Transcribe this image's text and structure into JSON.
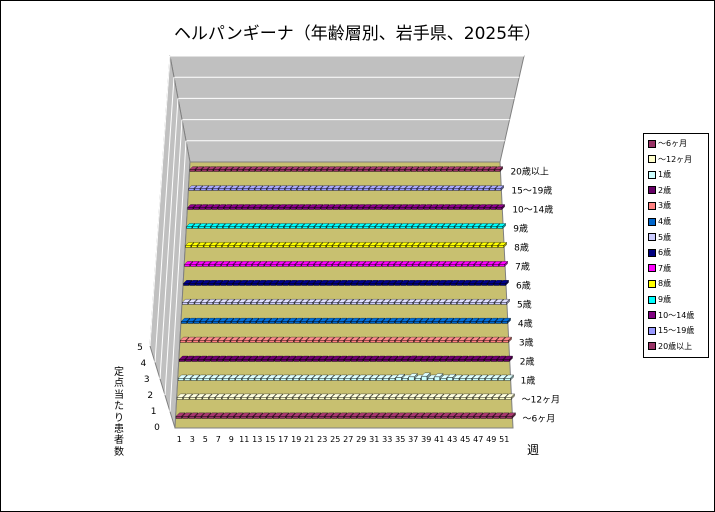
{
  "chart_data": {
    "type": "bar3d",
    "title": "ヘルパンギーナ（年齢層別、岩手県、2025年）",
    "xlabel": "週",
    "zlabel": "定点当たり患者数",
    "zlim": [
      0,
      5
    ],
    "z_ticks": [
      "0",
      "1",
      "2",
      "3",
      "4",
      "5"
    ],
    "x_ticks": [
      "1",
      "3",
      "5",
      "7",
      "9",
      "11",
      "13",
      "15",
      "17",
      "19",
      "21",
      "23",
      "25",
      "27",
      "29",
      "31",
      "33",
      "35",
      "37",
      "39",
      "41",
      "43",
      "45",
      "47",
      "49",
      "51"
    ],
    "weeks": 52,
    "legend_position": "right",
    "series": [
      {
        "name": "～6ヶ月",
        "color": "#993366",
        "values": [
          0,
          0,
          0,
          0,
          0,
          0,
          0,
          0,
          0,
          0,
          0,
          0,
          0,
          0,
          0,
          0,
          0,
          0,
          0,
          0,
          0,
          0,
          0,
          0,
          0,
          0,
          0,
          0,
          0,
          0,
          0,
          0,
          0,
          0,
          0,
          0,
          0,
          0,
          0,
          0,
          0,
          0,
          0,
          0,
          0,
          0,
          0,
          0,
          0,
          0,
          0,
          0
        ]
      },
      {
        "name": "～12ヶ月",
        "color": "#ffffcc",
        "values": [
          0,
          0,
          0,
          0,
          0,
          0,
          0,
          0,
          0,
          0,
          0,
          0,
          0,
          0,
          0,
          0,
          0,
          0,
          0,
          0,
          0,
          0,
          0,
          0,
          0,
          0,
          0,
          0,
          0,
          0,
          0,
          0,
          0,
          0,
          0,
          0,
          0,
          0,
          0,
          0,
          0,
          0,
          0,
          0,
          0,
          0,
          0,
          0,
          0,
          0,
          0,
          0
        ]
      },
      {
        "name": "1歳",
        "color": "#ccffff",
        "values": [
          0,
          0,
          0,
          0,
          0.04,
          0,
          0,
          0,
          0,
          0,
          0,
          0,
          0,
          0,
          0,
          0,
          0,
          0,
          0,
          0,
          0,
          0,
          0,
          0,
          0,
          0.04,
          0,
          0,
          0.04,
          0,
          0,
          0.04,
          0,
          0.08,
          0.17,
          0.08,
          0.21,
          0.08,
          0.25,
          0.08,
          0.21,
          0.13,
          0.17,
          0.04,
          0.08,
          0.08,
          0.04,
          0.04,
          0.04,
          0,
          0,
          0
        ]
      },
      {
        "name": "2歳",
        "color": "#660066",
        "values": [
          0,
          0,
          0,
          0,
          0,
          0,
          0,
          0,
          0,
          0,
          0,
          0,
          0,
          0,
          0,
          0,
          0,
          0,
          0,
          0,
          0,
          0,
          0,
          0,
          0,
          0,
          0,
          0,
          0,
          0,
          0,
          0,
          0,
          0,
          0,
          0.04,
          0.13,
          0.08,
          0.08,
          0.04,
          0.08,
          0.08,
          0.08,
          0.04,
          0.04,
          0.08,
          0.04,
          0,
          0,
          0,
          0,
          0
        ]
      },
      {
        "name": "3歳",
        "color": "#ff8080",
        "values": [
          0,
          0,
          0,
          0,
          0,
          0,
          0,
          0,
          0,
          0,
          0,
          0,
          0,
          0,
          0,
          0,
          0,
          0,
          0,
          0,
          0,
          0,
          0,
          0,
          0,
          0,
          0,
          0,
          0,
          0,
          0,
          0,
          0,
          0,
          0.04,
          0.04,
          0.04,
          0.04,
          0.04,
          0.04,
          0.04,
          0,
          0.04,
          0,
          0,
          0.04,
          0,
          0,
          0,
          0,
          0,
          0
        ]
      },
      {
        "name": "4歳",
        "color": "#0066cc",
        "values": [
          0,
          0,
          0,
          0,
          0,
          0,
          0,
          0,
          0,
          0,
          0,
          0,
          0,
          0,
          0,
          0,
          0,
          0,
          0,
          0,
          0,
          0,
          0,
          0,
          0,
          0,
          0,
          0,
          0,
          0,
          0,
          0,
          0,
          0,
          0,
          0.04,
          0.04,
          0.04,
          0.08,
          0.04,
          0.04,
          0.04,
          0,
          0.04,
          0,
          0,
          0,
          0,
          0,
          0,
          0,
          0
        ]
      },
      {
        "name": "5歳",
        "color": "#ccccff",
        "values": [
          0,
          0,
          0,
          0,
          0,
          0,
          0,
          0,
          0,
          0,
          0,
          0,
          0,
          0,
          0,
          0,
          0,
          0,
          0,
          0,
          0,
          0,
          0,
          0,
          0,
          0,
          0,
          0,
          0,
          0,
          0,
          0,
          0,
          0,
          0.04,
          0.04,
          0.04,
          0.04,
          0.04,
          0,
          0.04,
          0.04,
          0.04,
          0,
          0.04,
          0,
          0,
          0,
          0,
          0,
          0,
          0
        ]
      },
      {
        "name": "6歳",
        "color": "#000080",
        "values": [
          0,
          0,
          0,
          0,
          0,
          0,
          0,
          0,
          0,
          0,
          0,
          0,
          0,
          0,
          0,
          0,
          0,
          0,
          0,
          0,
          0,
          0,
          0,
          0,
          0,
          0,
          0,
          0,
          0,
          0,
          0.04,
          0,
          0,
          0,
          0,
          0.04,
          0.04,
          0.08,
          0.04,
          0,
          0.04,
          0,
          0.08,
          0.04,
          0,
          0,
          0,
          0,
          0,
          0,
          0,
          0
        ]
      },
      {
        "name": "7歳",
        "color": "#ff00ff",
        "values": [
          0,
          0,
          0,
          0,
          0,
          0,
          0,
          0,
          0,
          0,
          0,
          0,
          0,
          0,
          0,
          0,
          0,
          0,
          0,
          0,
          0,
          0,
          0,
          0,
          0,
          0,
          0,
          0,
          0,
          0,
          0,
          0,
          0,
          0,
          0,
          0,
          0,
          0,
          0,
          0,
          0,
          0,
          0,
          0,
          0,
          0,
          0,
          0,
          0,
          0,
          0,
          0
        ]
      },
      {
        "name": "8歳",
        "color": "#ffff00",
        "values": [
          0,
          0,
          0,
          0,
          0,
          0,
          0,
          0,
          0,
          0,
          0,
          0,
          0,
          0,
          0,
          0,
          0,
          0,
          0,
          0,
          0,
          0,
          0,
          0,
          0,
          0,
          0,
          0,
          0,
          0,
          0,
          0,
          0,
          0,
          0,
          0,
          0,
          0,
          0.04,
          0,
          0,
          0,
          0.04,
          0,
          0,
          0,
          0,
          0,
          0,
          0,
          0,
          0
        ]
      },
      {
        "name": "9歳",
        "color": "#00ffff",
        "values": [
          0,
          0,
          0,
          0,
          0,
          0,
          0,
          0,
          0,
          0,
          0,
          0,
          0,
          0,
          0,
          0,
          0,
          0,
          0,
          0,
          0,
          0,
          0,
          0,
          0,
          0,
          0,
          0,
          0,
          0,
          0,
          0,
          0,
          0,
          0,
          0,
          0,
          0,
          0,
          0,
          0,
          0,
          0,
          0,
          0,
          0,
          0,
          0,
          0,
          0,
          0,
          0
        ]
      },
      {
        "name": "10～14歳",
        "color": "#800080",
        "values": [
          0,
          0,
          0,
          0,
          0,
          0,
          0,
          0,
          0,
          0,
          0,
          0,
          0,
          0,
          0,
          0,
          0,
          0,
          0,
          0,
          0,
          0,
          0,
          0,
          0,
          0,
          0,
          0,
          0,
          0,
          0,
          0,
          0,
          0,
          0,
          0.04,
          0,
          0,
          0,
          0,
          0,
          0,
          0,
          0,
          0,
          0,
          0,
          0,
          0,
          0,
          0,
          0
        ]
      },
      {
        "name": "15～19歳",
        "color": "#9999ff",
        "values": [
          0,
          0,
          0,
          0,
          0,
          0,
          0,
          0,
          0,
          0,
          0,
          0,
          0,
          0,
          0,
          0,
          0,
          0,
          0,
          0,
          0,
          0,
          0,
          0,
          0,
          0,
          0,
          0,
          0,
          0,
          0,
          0,
          0,
          0,
          0,
          0,
          0,
          0,
          0,
          0,
          0,
          0,
          0,
          0,
          0,
          0,
          0,
          0,
          0,
          0,
          0,
          0
        ]
      },
      {
        "name": "20歳以上",
        "color": "#993366",
        "values": [
          0,
          0,
          0,
          0,
          0,
          0,
          0,
          0,
          0,
          0,
          0,
          0,
          0,
          0,
          0,
          0,
          0,
          0,
          0,
          0,
          0,
          0,
          0,
          0,
          0,
          0,
          0,
          0,
          0,
          0,
          0,
          0,
          0,
          0,
          0,
          0,
          0,
          0,
          0,
          0,
          0,
          0,
          0,
          0,
          0,
          0,
          0,
          0,
          0,
          0,
          0,
          0
        ]
      }
    ]
  }
}
